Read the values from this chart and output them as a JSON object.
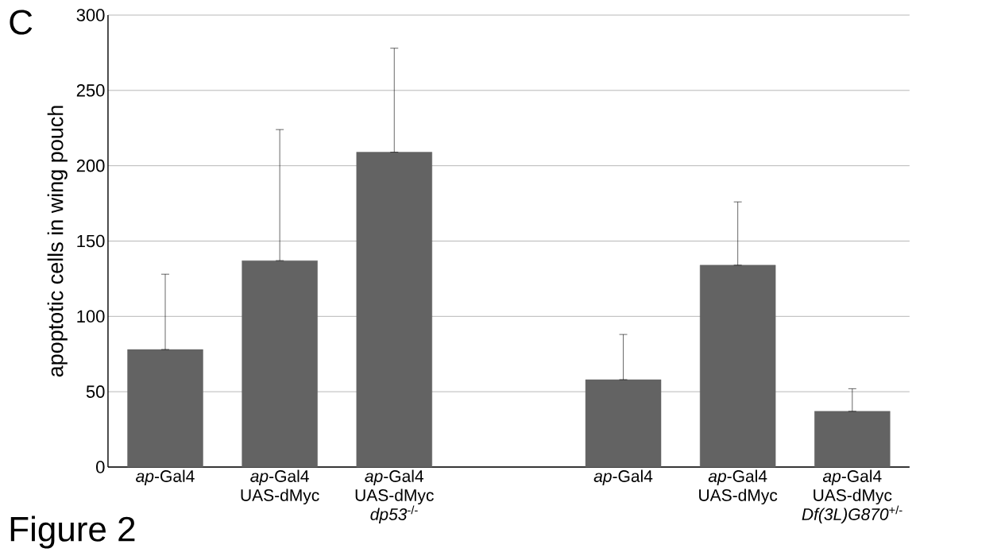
{
  "chart_data": {
    "type": "bar",
    "ylabel": "apoptotic cells in wing pouch",
    "annotations": [
      "C",
      "Figure 2"
    ],
    "categories": [
      "*ap*-Gal4",
      "*ap*-Gal4 UAS-dMyc",
      "*ap*-Gal4 UAS-dMyc *dp53*$^{-/-}$",
      null,
      "*ap*-Gal4",
      "*ap*-Gal4 UAS-dMyc",
      "*ap*-Gal4 UAS-dMyc *Df(3L)G870*$^{+/-}$"
    ],
    "values": [
      78,
      137,
      209,
      null,
      58,
      134,
      37
    ],
    "errors": [
      [
        78,
        128
      ],
      [
        137,
        224
      ],
      [
        209,
        278
      ],
      null,
      [
        58,
        88
      ],
      [
        134,
        176
      ],
      [
        37,
        52
      ]
    ],
    "color": "#636363",
    "ylim": [
      0,
      300
    ],
    "yticks": [
      0,
      50,
      100,
      150,
      200,
      250,
      300
    ],
    "grid": "y"
  }
}
